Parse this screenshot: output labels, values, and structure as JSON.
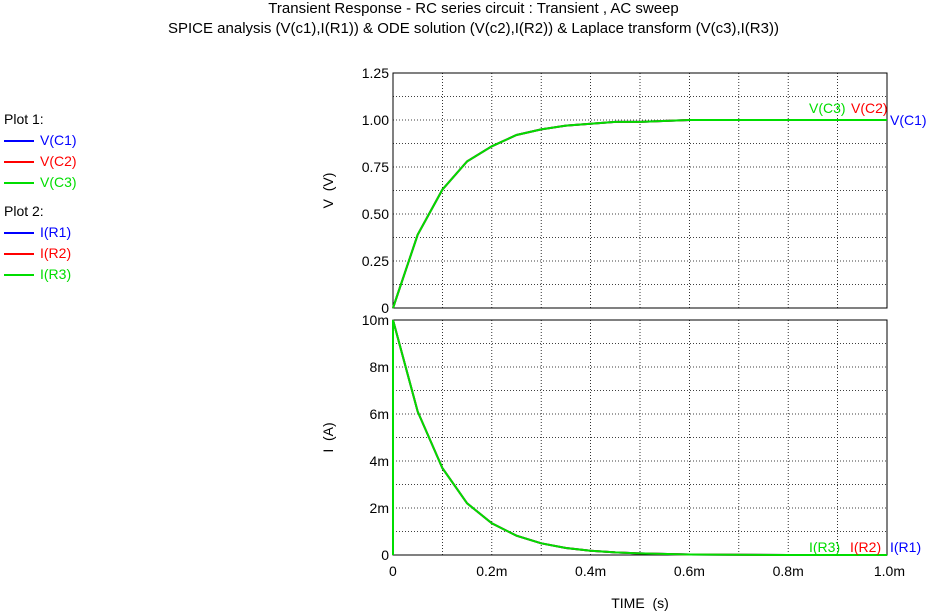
{
  "header": {
    "title": "Transient Response  -  RC series circuit : Transient , AC sweep",
    "subtitle": "SPICE analysis (V(c1),I(R1)) & ODE solution (V(c2),I(R2)) & Laplace transform (V(c3),I(R3))"
  },
  "legend": {
    "groups": [
      {
        "title": "Plot 1:",
        "items": [
          {
            "label": "V(C1)",
            "color": "#0000ff"
          },
          {
            "label": "V(C2)",
            "color": "#ff0000"
          },
          {
            "label": "V(C3)",
            "color": "#00dd00"
          }
        ]
      },
      {
        "title": "Plot 2:",
        "items": [
          {
            "label": "I(R1)",
            "color": "#0000ff"
          },
          {
            "label": "I(R2)",
            "color": "#ff0000"
          },
          {
            "label": "I(R3)",
            "color": "#00dd00"
          }
        ]
      }
    ]
  },
  "chart_data": [
    {
      "type": "line",
      "ylabel": "V  (V)",
      "xlim": [
        0,
        0.001
      ],
      "ylim": [
        0,
        1.25
      ],
      "yticks": [
        0,
        0.25,
        0.5,
        0.75,
        1.0,
        1.25
      ],
      "ytick_labels": [
        "0",
        "0.25",
        "0.50",
        "0.75",
        "1.00",
        "1.25"
      ],
      "grid": true,
      "x": [
        0,
        5e-05,
        0.0001,
        0.00015,
        0.0002,
        0.00025,
        0.0003,
        0.00035,
        0.0004,
        0.00045,
        0.0005,
        0.0006,
        0.0007,
        0.0008,
        0.0009,
        0.001
      ],
      "series": [
        {
          "name": "V(C1)",
          "color": "#0000ff",
          "values": [
            0,
            0.39,
            0.63,
            0.78,
            0.86,
            0.92,
            0.95,
            0.97,
            0.98,
            0.99,
            0.99,
            1.0,
            1.0,
            1.0,
            1.0,
            1.0
          ]
        },
        {
          "name": "V(C2)",
          "color": "#ff0000",
          "values": [
            0,
            0.39,
            0.63,
            0.78,
            0.86,
            0.92,
            0.95,
            0.97,
            0.98,
            0.99,
            0.99,
            1.0,
            1.0,
            1.0,
            1.0,
            1.0
          ]
        },
        {
          "name": "V(C3)",
          "color": "#00dd00",
          "values": [
            0,
            0.39,
            0.63,
            0.78,
            0.86,
            0.92,
            0.95,
            0.97,
            0.98,
            0.99,
            0.99,
            1.0,
            1.0,
            1.0,
            1.0,
            1.0
          ]
        }
      ]
    },
    {
      "type": "line",
      "ylabel": "I  (A)",
      "xlabel": "TIME  (s)",
      "xlim": [
        0,
        0.001
      ],
      "xticks": [
        0,
        0.0002,
        0.0004,
        0.0006,
        0.0008,
        0.001
      ],
      "xtick_labels": [
        "0",
        "0.2m",
        "0.4m",
        "0.6m",
        "0.8m",
        "1.0m"
      ],
      "ylim": [
        0,
        0.01
      ],
      "yticks": [
        0,
        0.002,
        0.004,
        0.006,
        0.008,
        0.01
      ],
      "ytick_labels": [
        "0",
        "2m",
        "4m",
        "6m",
        "8m",
        "10m"
      ],
      "grid": true,
      "x": [
        0,
        5e-05,
        0.0001,
        0.00015,
        0.0002,
        0.00025,
        0.0003,
        0.00035,
        0.0004,
        0.00045,
        0.0005,
        0.0006,
        0.0007,
        0.0008,
        0.0009,
        0.001
      ],
      "series": [
        {
          "name": "I(R1)",
          "color": "#0000ff",
          "values": [
            0.01,
            0.0061,
            0.0037,
            0.0022,
            0.00135,
            0.00082,
            0.0005,
            0.0003,
            0.00018,
            0.00011,
            7e-05,
            2e-05,
            1e-05,
            0.0,
            0.0,
            0.0
          ]
        },
        {
          "name": "I(R2)",
          "color": "#ff0000",
          "values": [
            0.01,
            0.0061,
            0.0037,
            0.0022,
            0.00135,
            0.00082,
            0.0005,
            0.0003,
            0.00018,
            0.00011,
            7e-05,
            2e-05,
            1e-05,
            0.0,
            0.0,
            0.0
          ]
        },
        {
          "name": "I(R3)",
          "color": "#00dd00",
          "values": [
            0.01,
            0.0061,
            0.0037,
            0.0022,
            0.00135,
            0.00082,
            0.0005,
            0.0003,
            0.00018,
            0.00011,
            7e-05,
            2e-05,
            1e-05,
            0.0,
            0.0,
            0.0
          ]
        }
      ]
    }
  ]
}
